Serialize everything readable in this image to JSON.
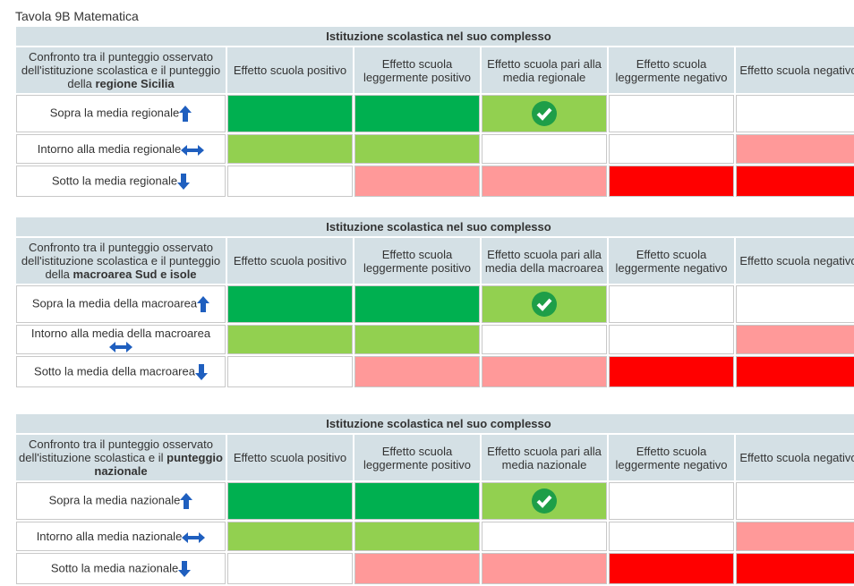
{
  "title": "Tavola 9B Matematica",
  "cell_colors": [
    [
      "#00b050",
      "#00b050",
      "#92d050",
      "#ffffff",
      "#ffffff"
    ],
    [
      "#92d050",
      "#92d050",
      "#ffffff",
      "#ffffff",
      "#ff9999"
    ],
    [
      "#ffffff",
      "#ff9999",
      "#ff9999",
      "#ff0000",
      "#ff0000"
    ]
  ],
  "tables": [
    {
      "caption": "Istituzione scolastica nel suo complesso",
      "comparison": {
        "text": "Confronto tra il punteggio osservato dell'istituzione scolastica e il punteggio della",
        "bold": "regione Sicilia"
      },
      "columns": [
        "Effetto scuola positivo",
        "Effetto scuola leggermente positivo",
        "Effetto scuola pari alla media regionale",
        "Effetto scuola leggermente negativo",
        "Effetto scuola negativo"
      ],
      "rows": [
        "Sopra la media regionale",
        "Intorno alla media regionale",
        "Sotto la media regionale"
      ]
    },
    {
      "caption": "Istituzione scolastica nel suo complesso",
      "comparison": {
        "text": "Confronto tra il punteggio osservato dell'istituzione scolastica e il punteggio della",
        "bold": "macroarea Sud e isole"
      },
      "columns": [
        "Effetto scuola positivo",
        "Effetto scuola leggermente positivo",
        "Effetto scuola pari alla media della macroarea",
        "Effetto scuola leggermente negativo",
        "Effetto scuola negativo"
      ],
      "rows": [
        "Sopra la media della macroarea",
        "Intorno alla media della macroarea",
        "Sotto la media della macroarea"
      ]
    },
    {
      "caption": "Istituzione scolastica nel suo complesso",
      "comparison": {
        "text": "Confronto tra il punteggio osservato dell'istituzione scolastica e il",
        "bold": "punteggio nazionale"
      },
      "columns": [
        "Effetto scuola positivo",
        "Effetto scuola leggermente positivo",
        "Effetto scuola pari alla media nazionale",
        "Effetto scuola leggermente negativo",
        "Effetto scuola negativo"
      ],
      "rows": [
        "Sopra la media nazionale",
        "Intorno alla media nazionale",
        "Sotto la media nazionale"
      ]
    }
  ]
}
